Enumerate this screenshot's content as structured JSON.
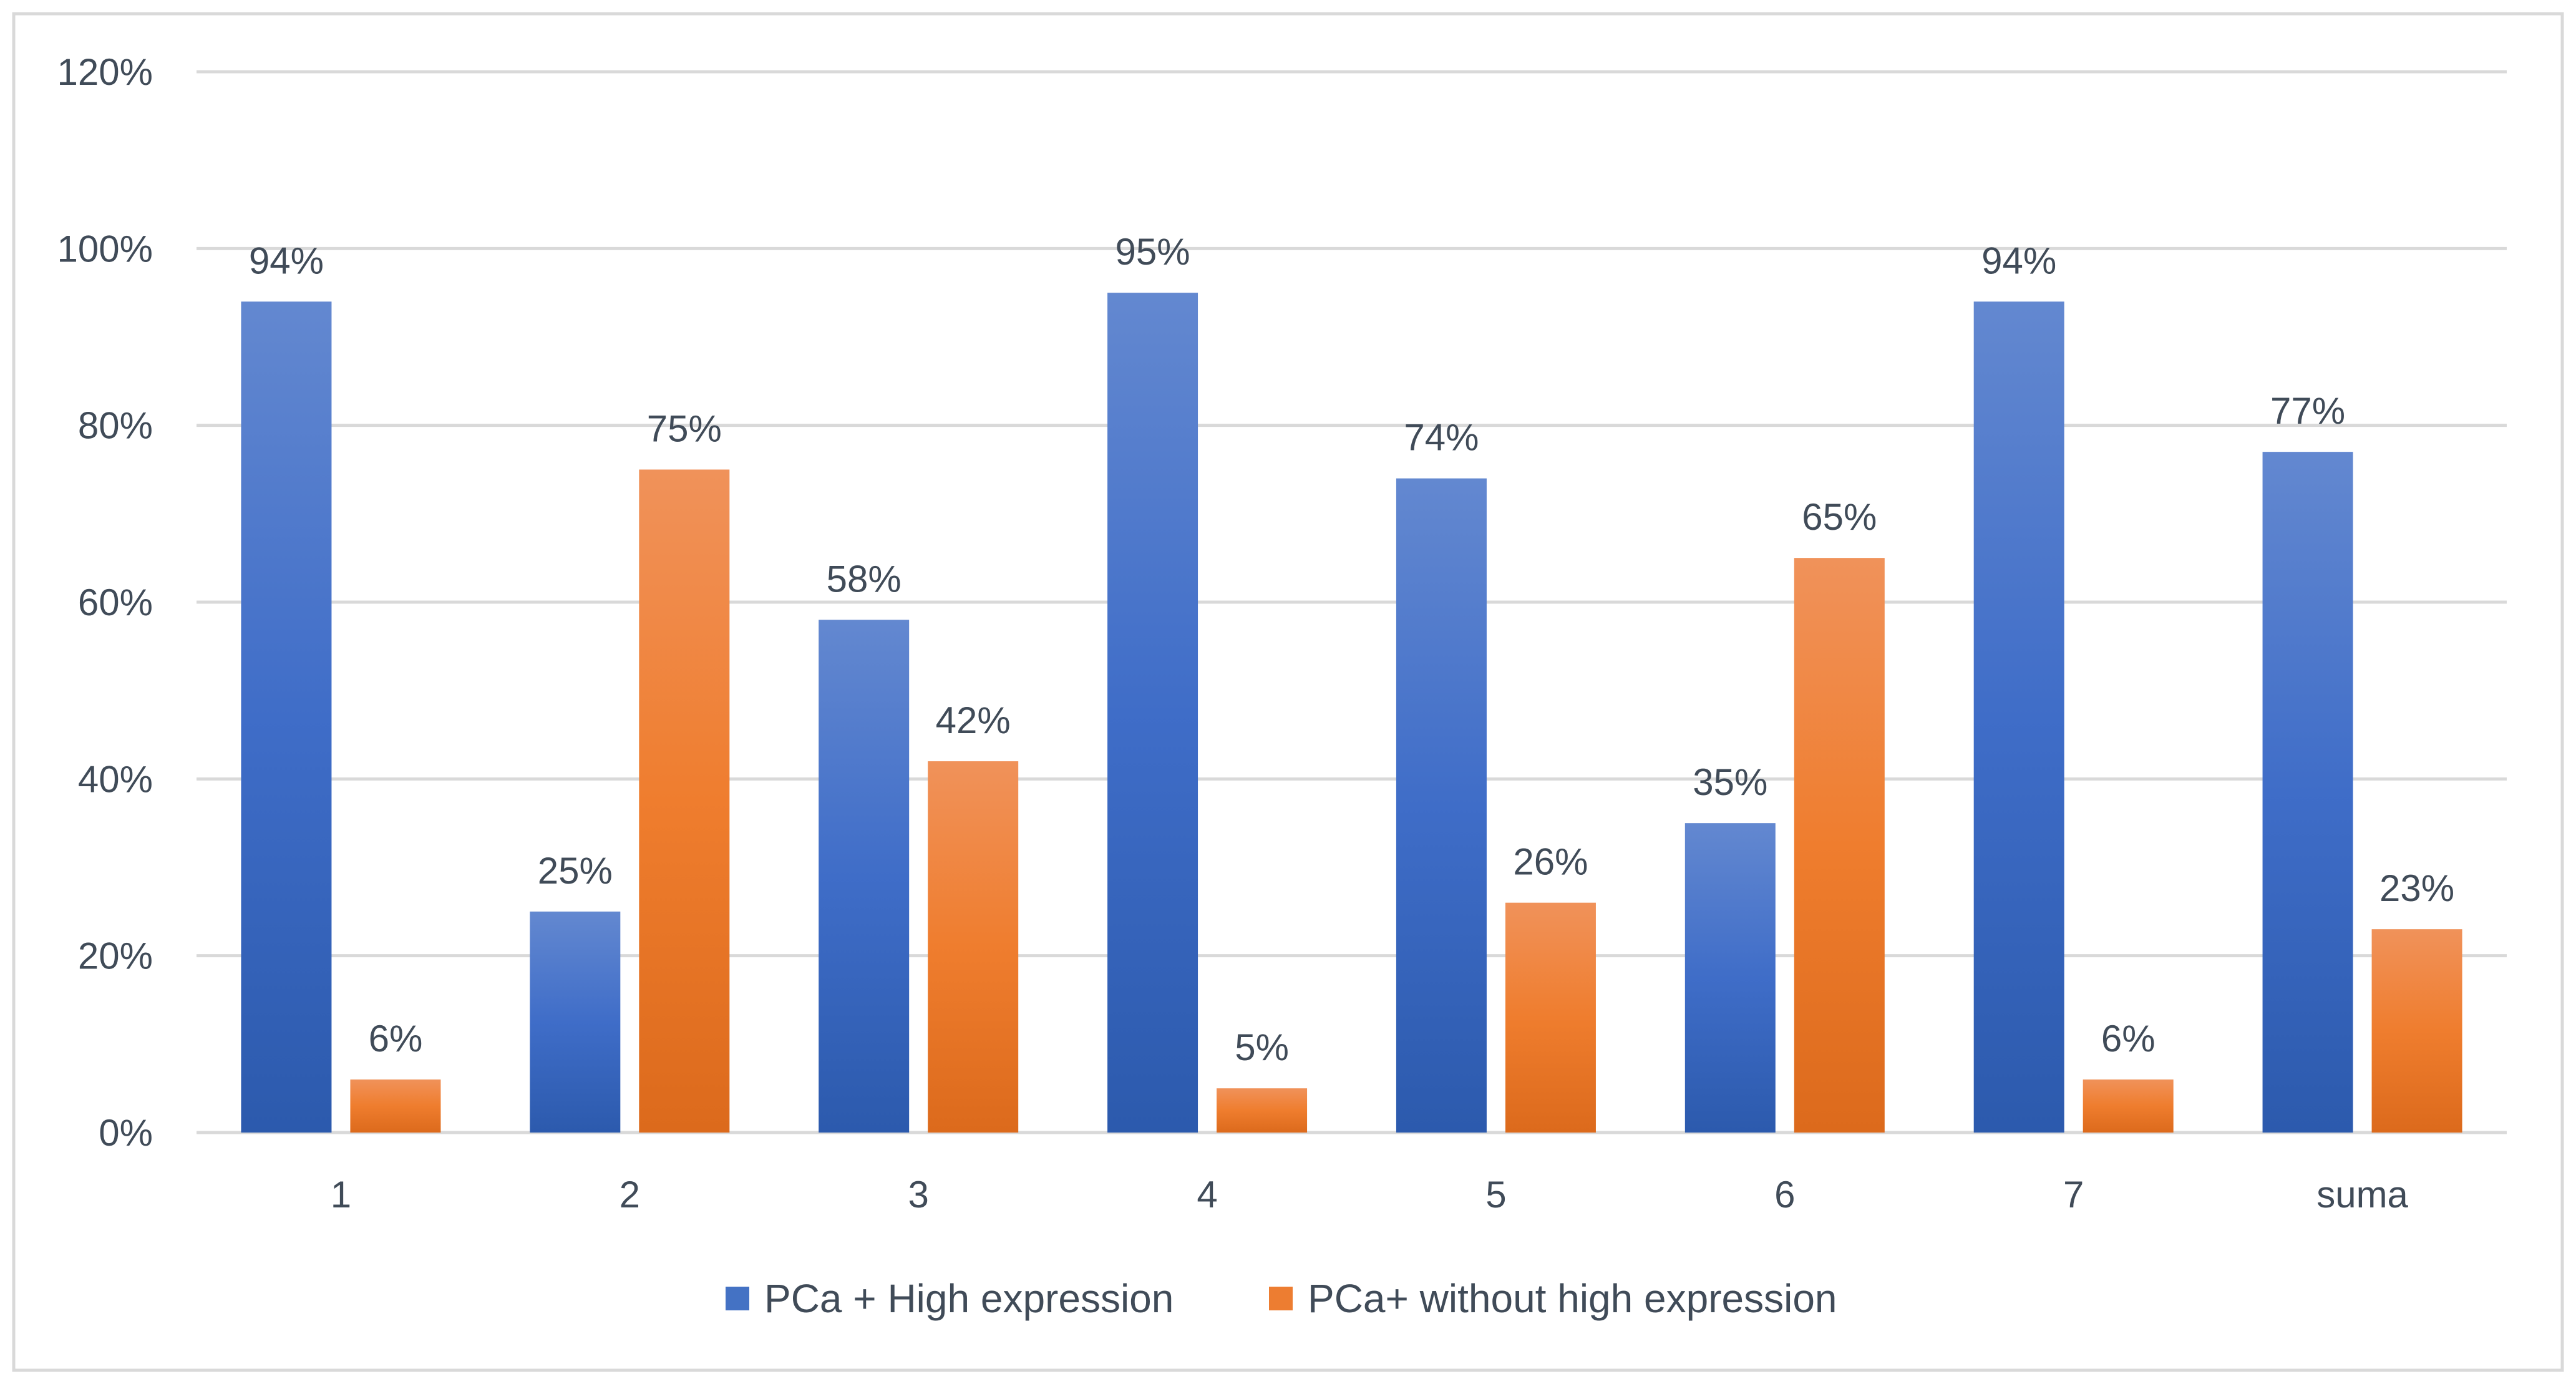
{
  "chart_data": {
    "type": "bar",
    "title": "",
    "xlabel": "",
    "ylabel": "",
    "categories": [
      "1",
      "2",
      "3",
      "4",
      "5",
      "6",
      "7",
      "suma"
    ],
    "series": [
      {
        "name": "PCa + High expression",
        "color": "#4472C4",
        "values": [
          94,
          25,
          58,
          95,
          74,
          35,
          94,
          77
        ],
        "labels": [
          "94%",
          "25%",
          "58%",
          "95%",
          "74%",
          "35%",
          "94%",
          "77%"
        ]
      },
      {
        "name": "PCa+ without high expression",
        "color": "#ED7D31",
        "values": [
          6,
          75,
          42,
          5,
          26,
          65,
          6,
          23
        ],
        "labels": [
          "6%",
          "75%",
          "42%",
          "5%",
          "26%",
          "65%",
          "6%",
          "23%"
        ]
      }
    ],
    "ylim": [
      0,
      120
    ],
    "yticks": [
      0,
      20,
      40,
      60,
      80,
      100,
      120
    ],
    "ytick_labels": [
      "0%",
      "20%",
      "40%",
      "60%",
      "80%",
      "100%",
      "120%"
    ],
    "grid": true,
    "legend": "bottom-center"
  }
}
